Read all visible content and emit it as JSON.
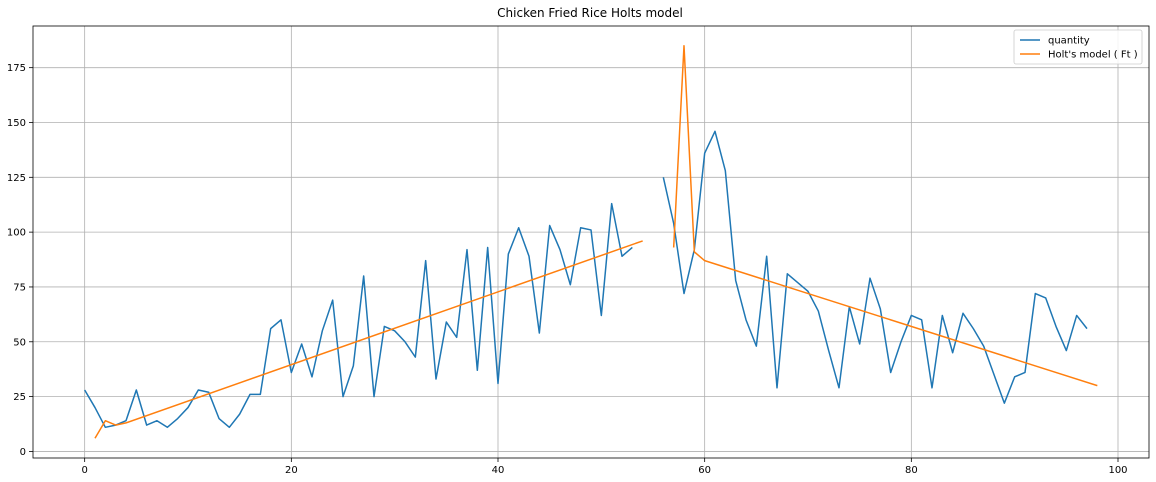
{
  "chart_data": {
    "type": "line",
    "title": "Chicken Fried Rice Holts model",
    "xlabel": "",
    "ylabel": "",
    "xlim": [
      -5,
      103
    ],
    "ylim": [
      -3,
      194
    ],
    "xticks": [
      0,
      20,
      40,
      60,
      80,
      100
    ],
    "yticks": [
      0,
      25,
      50,
      75,
      100,
      125,
      150,
      175
    ],
    "grid": true,
    "legend_position": "top-right",
    "series": [
      {
        "name": "quantity",
        "color": "#1f77b4",
        "segments": [
          {
            "x": [
              0,
              1,
              2,
              3,
              4,
              5,
              6,
              7,
              8,
              9,
              10,
              11,
              12,
              13,
              14,
              15,
              16,
              17,
              18,
              19,
              20,
              21,
              22,
              23,
              24,
              25,
              26,
              27,
              28,
              29,
              30,
              31,
              32,
              33,
              34,
              35,
              36,
              37,
              38,
              39,
              40,
              41,
              42,
              43,
              44,
              45,
              46,
              47,
              48,
              49,
              50,
              51,
              52,
              53
            ],
            "y": [
              28,
              20,
              11,
              12,
              14,
              28,
              12,
              14,
              11,
              15,
              20,
              28,
              27,
              15,
              11,
              17,
              26,
              26,
              56,
              60,
              36,
              49,
              34,
              55,
              69,
              25,
              39,
              80,
              25,
              57,
              55,
              50,
              43,
              87,
              33,
              59,
              52,
              92,
              37,
              93,
              31,
              90,
              102,
              89,
              54,
              103,
              92,
              76,
              102,
              101,
              62,
              113,
              89,
              93
            ]
          },
          {
            "x": [
              56,
              57,
              58,
              59,
              60,
              61,
              62,
              63,
              64,
              65,
              66,
              67,
              68,
              69,
              70,
              71,
              72,
              73,
              74,
              75,
              76,
              77,
              78,
              79,
              80,
              81,
              82,
              83,
              84,
              85,
              86,
              87,
              88,
              89,
              90,
              91,
              92,
              93,
              94,
              95,
              96,
              97
            ],
            "y": [
              125,
              104,
              72,
              92,
              136,
              146,
              128,
              78,
              60,
              48,
              89,
              29,
              81,
              77,
              73,
              64,
              46,
              29,
              66,
              49,
              79,
              65,
              36,
              50,
              62,
              60,
              29,
              62,
              45,
              63,
              56,
              48,
              35,
              22,
              34,
              36,
              72,
              70,
              57,
              46,
              62,
              56
            ]
          }
        ]
      },
      {
        "name": "Holt's model ( Ft )",
        "color": "#ff7f0e",
        "segments": [
          {
            "x": [
              1,
              2,
              3,
              4,
              54
            ],
            "y": [
              6,
              14,
              12,
              13,
              96
            ]
          },
          {
            "x": [
              57,
              58,
              59,
              60,
              98
            ],
            "y": [
              93,
              185,
              91,
              87,
              30
            ]
          }
        ]
      }
    ]
  }
}
